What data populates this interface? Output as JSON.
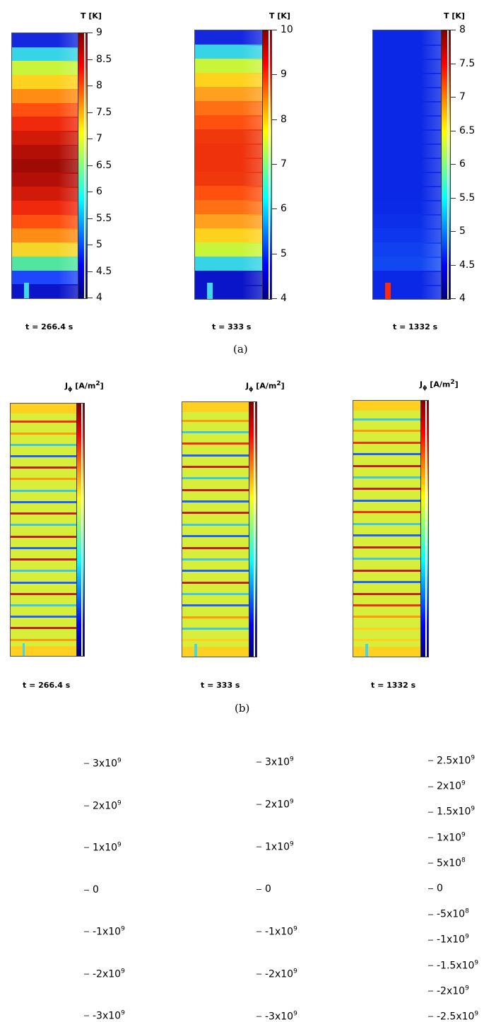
{
  "figure_a": {
    "label": "(a)",
    "unit_label": "T [K]",
    "colorbar_colors": [
      "#00007f",
      "#0000ff",
      "#0080ff",
      "#00ffff",
      "#80ff80",
      "#ffff00",
      "#ff8000",
      "#ff0000",
      "#7f0000"
    ],
    "panels": [
      {
        "time": "t = 266.4 s",
        "ticks": [
          "9",
          "8.5",
          "8",
          "7.5",
          "7",
          "6.5",
          "6",
          "5.5",
          "5",
          "4.5",
          "4"
        ],
        "rows": [
          "#1428e0",
          "#37d3e6",
          "#c8f53a",
          "#ffd21e",
          "#ff8c14",
          "#ff5010",
          "#f0280c",
          "#d21a08",
          "#b40f06",
          "#a00a05",
          "#b40f06",
          "#d21a08",
          "#f0280c",
          "#ff5010",
          "#ff8c14",
          "#f5d628",
          "#50e6a0",
          "#1e46ff",
          "#0a14c8"
        ]
      },
      {
        "time": "t = 333 s",
        "ticks": [
          "10",
          "9",
          "8",
          "7",
          "6",
          "5",
          "4"
        ],
        "rows": [
          "#1428e0",
          "#37d3e6",
          "#c8f53a",
          "#ffd21e",
          "#ffa01e",
          "#ff7014",
          "#ff5010",
          "#f0380c",
          "#f0320c",
          "#f0320c",
          "#f0380c",
          "#ff5010",
          "#ff7014",
          "#ffa01e",
          "#ffd21e",
          "#c8f53a",
          "#37d3e6",
          "#0a14c8",
          "#0a14c8"
        ]
      },
      {
        "time": "t = 1332 s",
        "ticks": [
          "8",
          "7.5",
          "7",
          "6.5",
          "6",
          "5.5",
          "5",
          "4.5",
          "4"
        ],
        "rows": [
          "#0a28e6",
          "#0a28e6",
          "#0a28e6",
          "#0a28e6",
          "#0a28e6",
          "#0a28e6",
          "#0a28e6",
          "#0a28e6",
          "#0a28e6",
          "#0a28e6",
          "#0a28e6",
          "#0a28e6",
          "#0a2ae8",
          "#0c30ea",
          "#0e36ee",
          "#1040f0",
          "#1248f2",
          "#0a28e6",
          "#0a28e6"
        ]
      }
    ]
  },
  "figure_b": {
    "label": "(b)",
    "unit_label_main": "J",
    "unit_label_sub": "ϕ",
    "unit_label_rest": " [A/m",
    "unit_label_sup": "2",
    "unit_label_end": "]",
    "panels": [
      {
        "time": "t = 266.4 s",
        "ticks": [
          {
            "m": "3x10",
            "e": "9"
          },
          {
            "m": "2x10",
            "e": "9"
          },
          {
            "m": "1x10",
            "e": "9"
          },
          {
            "m": "0",
            "e": ""
          },
          {
            "m": "-1x10",
            "e": "9"
          },
          {
            "m": "-2x10",
            "e": "9"
          },
          {
            "m": "-3x10",
            "e": "9"
          }
        ]
      },
      {
        "time": "t = 333 s",
        "ticks": [
          {
            "m": "3x10",
            "e": "9"
          },
          {
            "m": "2x10",
            "e": "9"
          },
          {
            "m": "1x10",
            "e": "9"
          },
          {
            "m": "0",
            "e": ""
          },
          {
            "m": "-1x10",
            "e": "9"
          },
          {
            "m": "-2x10",
            "e": "9"
          },
          {
            "m": "-3x10",
            "e": "9"
          }
        ]
      },
      {
        "time": "t = 1332 s",
        "ticks": [
          {
            "m": "2.5x10",
            "e": "9"
          },
          {
            "m": "2x10",
            "e": "9"
          },
          {
            "m": "1.5x10",
            "e": "9"
          },
          {
            "m": "1x10",
            "e": "9"
          },
          {
            "m": "5x10",
            "e": "8"
          },
          {
            "m": "0",
            "e": ""
          },
          {
            "m": "-5x10",
            "e": "8"
          },
          {
            "m": "-1x10",
            "e": "9"
          },
          {
            "m": "-1.5x10",
            "e": "9"
          },
          {
            "m": "-2x10",
            "e": "9"
          },
          {
            "m": "-2.5x10",
            "e": "9"
          }
        ]
      }
    ],
    "background_color": "#d7ee3a",
    "stripe_colors": [
      "#ff9a10",
      "#f03010",
      "#40c8e0",
      "#2060ff",
      "#c02020",
      "#ffd020"
    ]
  }
}
